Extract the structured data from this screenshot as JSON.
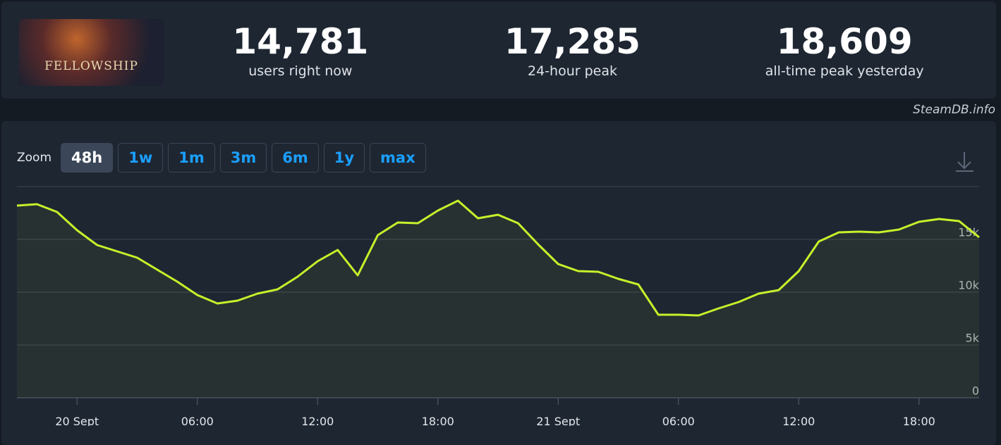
{
  "header": {
    "game_logo_text": "FELLOWSHIP",
    "stats": [
      {
        "value": "14,781",
        "label": "users right now"
      },
      {
        "value": "17,285",
        "label": "24-hour peak"
      },
      {
        "value": "18,609",
        "label": "all-time peak yesterday"
      }
    ]
  },
  "watermark": "SteamDB.info",
  "zoom": {
    "label": "Zoom",
    "options": [
      "48h",
      "1w",
      "1m",
      "3m",
      "6m",
      "1y",
      "max"
    ],
    "active_index": 0
  },
  "chart_data": {
    "type": "line",
    "color": "#c6f12a",
    "x": [
      -3,
      -2,
      -1,
      0,
      1,
      2,
      3,
      4,
      5,
      6,
      7,
      8,
      9,
      10,
      11,
      12,
      13,
      14,
      15,
      16,
      17,
      18,
      19,
      20,
      21,
      22,
      23,
      24,
      25,
      26,
      27,
      28,
      29,
      30,
      31,
      32,
      33,
      34,
      35,
      36,
      37,
      38,
      39,
      40,
      41,
      42,
      43,
      44,
      45
    ],
    "values": [
      18200,
      18333,
      17600,
      15867,
      14467,
      13867,
      13267,
      12133,
      11000,
      9733,
      8933,
      9200,
      9867,
      10267,
      11467,
      12933,
      14000,
      11600,
      15400,
      16600,
      16533,
      17733,
      18667,
      17000,
      17333,
      16533,
      14533,
      12667,
      12000,
      11933,
      11267,
      10733,
      7867,
      7867,
      7800,
      8467,
      9067,
      9867,
      10200,
      12000,
      14800,
      15667,
      15733,
      15667,
      15933,
      16667,
      16933,
      16733,
      15200
    ],
    "xlim": [
      -3,
      45
    ],
    "xticks": [
      {
        "value": 0,
        "label": "20 Sept"
      },
      {
        "value": 6,
        "label": "06:00"
      },
      {
        "value": 12,
        "label": "12:00"
      },
      {
        "value": 18,
        "label": "18:00"
      },
      {
        "value": 24,
        "label": "21 Sept"
      },
      {
        "value": 30,
        "label": "06:00"
      },
      {
        "value": 36,
        "label": "12:00"
      },
      {
        "value": 42,
        "label": "18:00"
      }
    ],
    "ylim": [
      0,
      20000
    ],
    "yticks": [
      0,
      {
        "value": 5000,
        "label": "5k"
      },
      {
        "value": 10000,
        "label": "10k"
      },
      {
        "value": 15000,
        "label": "15k"
      }
    ],
    "grid": true
  }
}
